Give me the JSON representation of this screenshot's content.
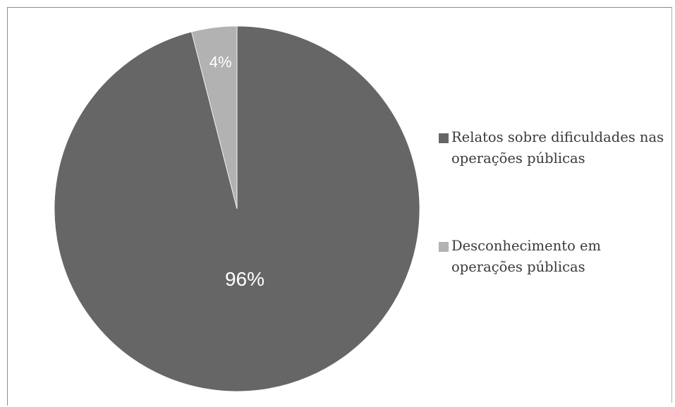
{
  "chart_data": {
    "type": "pie",
    "title": "",
    "legend_position": "right",
    "slices": [
      {
        "label": "Relatos sobre dificuldades nas operações públicas",
        "value": 96,
        "display": "96%",
        "color": "#666666"
      },
      {
        "label": "Desconhecimento em operações públicas",
        "value": 4,
        "display": "4%",
        "color": "#b2b2b2"
      }
    ],
    "legend": [
      {
        "text": "Relatos sobre dificuldades nas operações públicas",
        "color": "#666666"
      },
      {
        "text": "Desconhecimento em operações públicas",
        "color": "#b2b2b2"
      }
    ]
  }
}
